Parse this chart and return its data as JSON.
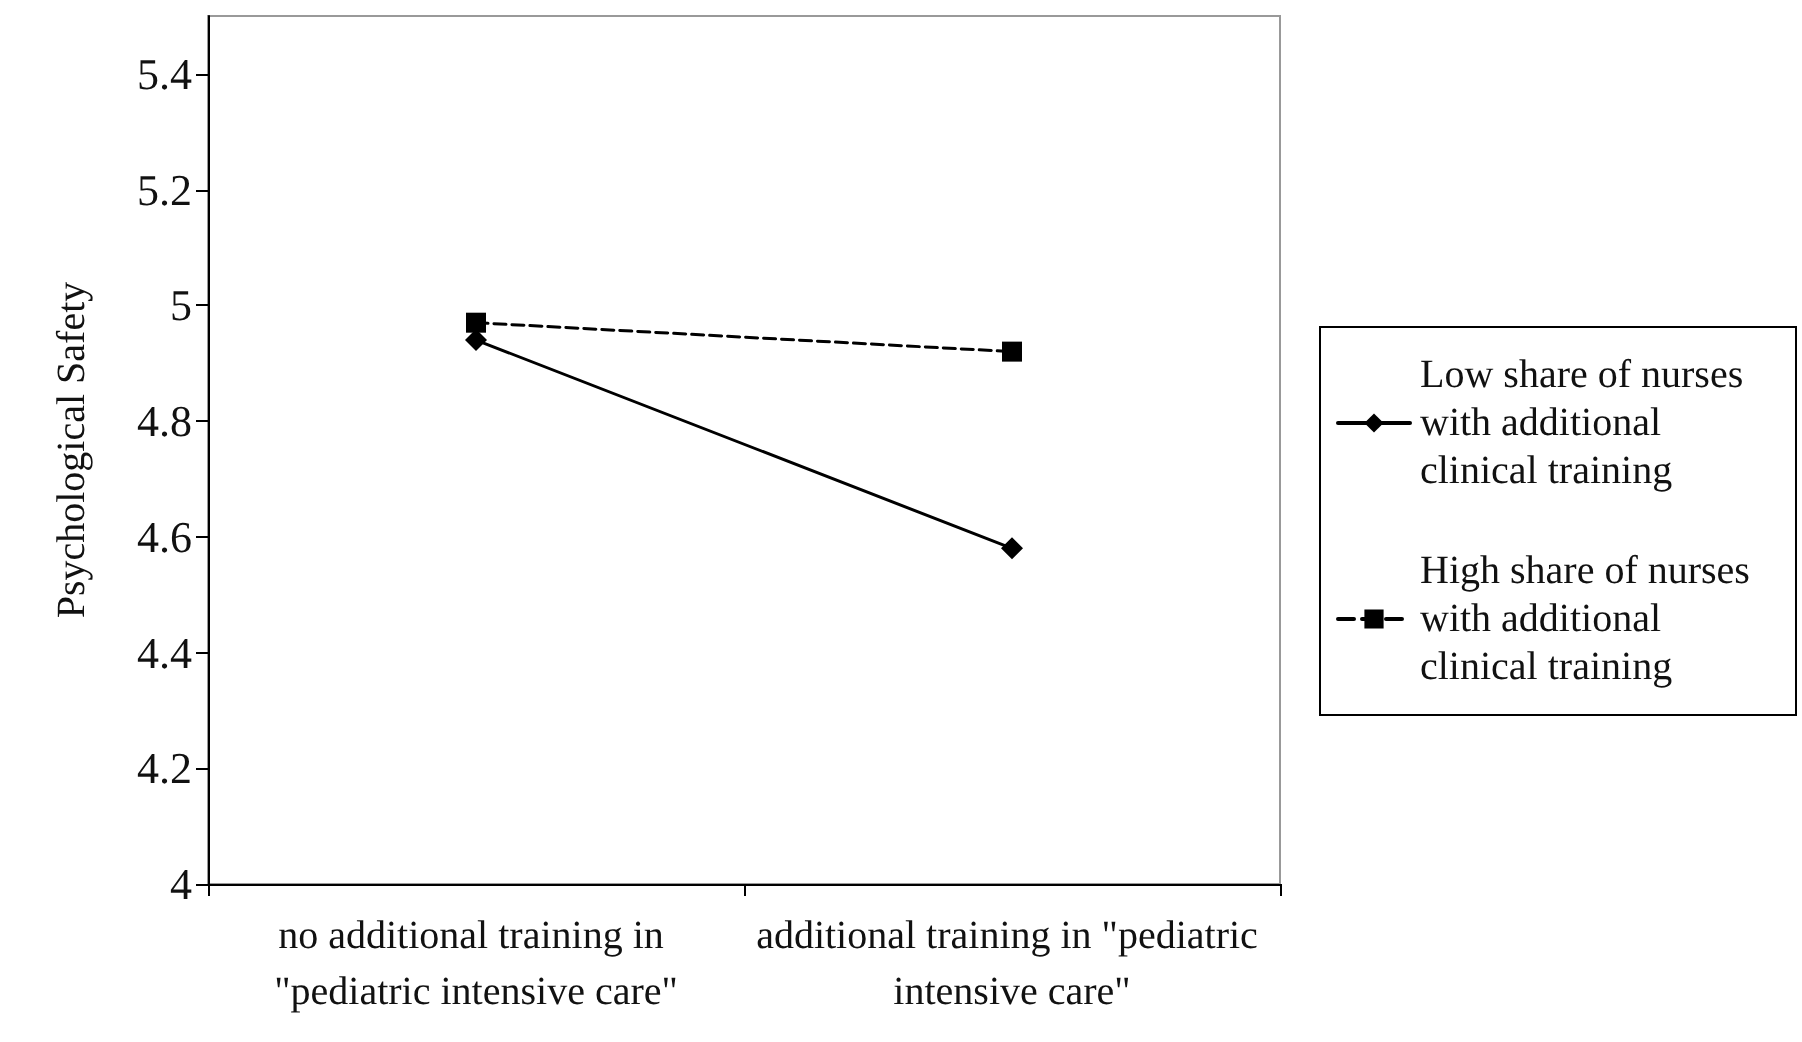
{
  "chart_data": {
    "type": "line",
    "ylabel": "Psychological Safety",
    "categories": [
      "no additional training in \"pediatric intensive care\"",
      "additional training in \"pediatric intensive care\""
    ],
    "series": [
      {
        "name": "Low share of nurses with additional clinical training",
        "color": "#000000",
        "values": [
          4.94,
          4.58
        ],
        "marker": "diamond",
        "line_style": "solid"
      },
      {
        "name": "High share of nurses with additional clinical training",
        "color": "#000000",
        "values": [
          4.97,
          4.92
        ],
        "marker": "square",
        "line_style": "dashed"
      }
    ],
    "ylim": [
      4,
      5.5
    ],
    "yticks": [
      4,
      4.2,
      4.4,
      4.6,
      4.8,
      5,
      5.2,
      5.4
    ],
    "grid": false,
    "legend": "right"
  }
}
